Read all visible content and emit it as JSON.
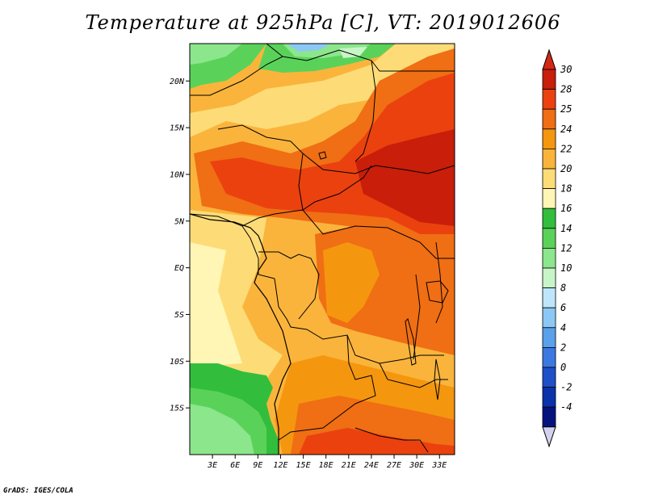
{
  "title": "Temperature at 925hPa [C], VT: 2019012606",
  "credit": "GrADS: IGES/COLA",
  "map": {
    "lon_range": [
      0,
      35
    ],
    "lat_range": [
      -20,
      24
    ],
    "lat_ticks": [
      {
        "value": 20,
        "label": "20N"
      },
      {
        "value": 15,
        "label": "15N"
      },
      {
        "value": 10,
        "label": "10N"
      },
      {
        "value": 5,
        "label": "5N"
      },
      {
        "value": 0,
        "label": "EQ"
      },
      {
        "value": -5,
        "label": "5S"
      },
      {
        "value": -10,
        "label": "10S"
      },
      {
        "value": -15,
        "label": "15S"
      }
    ],
    "lon_ticks": [
      {
        "value": 3,
        "label": "3E"
      },
      {
        "value": 6,
        "label": "6E"
      },
      {
        "value": 9,
        "label": "9E"
      },
      {
        "value": 12,
        "label": "12E"
      },
      {
        "value": 15,
        "label": "15E"
      },
      {
        "value": 18,
        "label": "18E"
      },
      {
        "value": 21,
        "label": "21E"
      },
      {
        "value": 24,
        "label": "24E"
      },
      {
        "value": 27,
        "label": "27E"
      },
      {
        "value": 30,
        "label": "30E"
      },
      {
        "value": 33,
        "label": "33E"
      }
    ]
  },
  "colorbar": {
    "levels": [
      {
        "label": "30",
        "color": "#c81e0a"
      },
      {
        "label": "28",
        "color": "#eb410f"
      },
      {
        "label": "25",
        "color": "#f06e14"
      },
      {
        "label": "24",
        "color": "#f5960f"
      },
      {
        "label": "22",
        "color": "#fab43c"
      },
      {
        "label": "20",
        "color": "#fddc78"
      },
      {
        "label": "18",
        "color": "#fff5b4"
      },
      {
        "label": "16",
        "color": "#32be3c"
      },
      {
        "label": "14",
        "color": "#5ad25a"
      },
      {
        "label": "12",
        "color": "#8ce68c"
      },
      {
        "label": "10",
        "color": "#c8f5c8"
      },
      {
        "label": "8",
        "color": "#bee6fa"
      },
      {
        "label": "6",
        "color": "#8cc8f5"
      },
      {
        "label": "4",
        "color": "#5aa0eb"
      },
      {
        "label": "2",
        "color": "#3c78e1"
      },
      {
        "label": "0",
        "color": "#1e50c8"
      },
      {
        "label": "-2",
        "color": "#0a32aa"
      },
      {
        "label": "-4",
        "color": "#05147d"
      }
    ],
    "top_arrow_color": "#d22814",
    "bottom_arrow_color": "#d2d2f0"
  }
}
